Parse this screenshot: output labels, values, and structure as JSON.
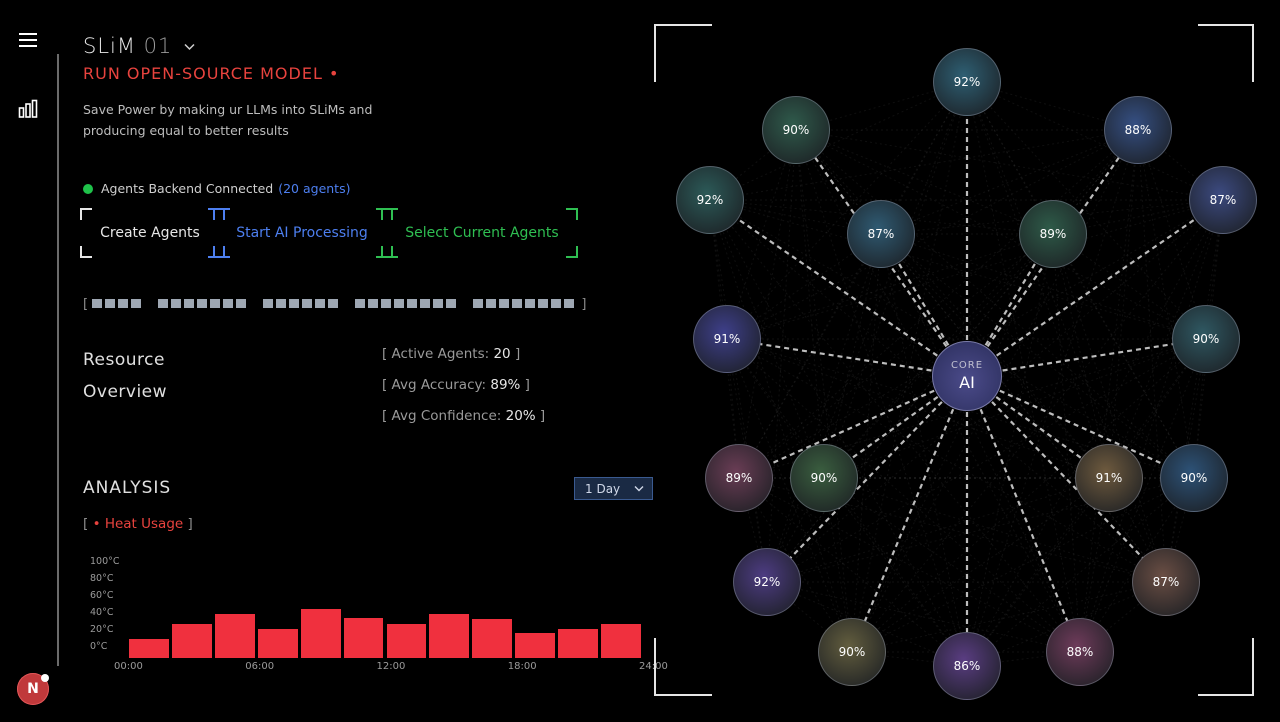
{
  "header": {
    "title": "SLiM",
    "version": "01",
    "subtitle": "RUN OPEN-SOURCE MODEL •",
    "description": "Save Power by making ur LLMs into SLiMs and producing equal to better results"
  },
  "status": {
    "text": "Agents Backend Connected",
    "count": "(20 agents)",
    "color": "#1fc24a"
  },
  "actions": {
    "create": "Create Agents",
    "start": "Start AI Processing",
    "select": "Select Current Agents"
  },
  "resource": {
    "title_line1": "Resource",
    "title_line2": "Overview",
    "active_label": "[ Active Agents:",
    "active_value": "20",
    "accuracy_label": "[ Avg Accuracy:",
    "accuracy_value": "89%",
    "confidence_label": "[ Avg Confidence:",
    "confidence_value": "20%",
    "close": "]"
  },
  "analysis": {
    "title": "ANALYSIS",
    "range": "1 Day",
    "metric_open": "[",
    "metric": "• Heat Usage",
    "metric_close": "]"
  },
  "chart_data": {
    "type": "bar",
    "title": "",
    "xlabel": "",
    "ylabel": "",
    "ylim": [
      0,
      100
    ],
    "yticks": [
      "100°C",
      "80°C",
      "60°C",
      "40°C",
      "20°C",
      "0°C"
    ],
    "xticks": [
      "00:00",
      "06:00",
      "12:00",
      "18:00",
      "24:00"
    ],
    "values": [
      22,
      40,
      52,
      34,
      58,
      47,
      40,
      52,
      46,
      29,
      34,
      40
    ],
    "color": "#f0303e"
  },
  "network": {
    "core_label": "CORE",
    "core_value": "AI",
    "nodes": [
      {
        "value": "92%",
        "color": "#2e5f73"
      },
      {
        "value": "90%",
        "color": "#2f5a4b"
      },
      {
        "value": "88%",
        "color": "#354f82"
      },
      {
        "value": "92%",
        "color": "#2c5a58"
      },
      {
        "value": "87%",
        "color": "#3c4a80"
      },
      {
        "value": "87%",
        "color": "#2f5a72"
      },
      {
        "value": "89%",
        "color": "#2e5a48"
      },
      {
        "value": "91%",
        "color": "#3e3f8a"
      },
      {
        "value": "90%",
        "color": "#2f5862"
      },
      {
        "value": "89%",
        "color": "#6a3d55"
      },
      {
        "value": "90%",
        "color": "#3a5e3f"
      },
      {
        "value": "91%",
        "color": "#6e5a3e"
      },
      {
        "value": "90%",
        "color": "#2d5277"
      },
      {
        "value": "92%",
        "color": "#4d3c82"
      },
      {
        "value": "87%",
        "color": "#6a4e44"
      },
      {
        "value": "90%",
        "color": "#625d3e"
      },
      {
        "value": "86%",
        "color": "#5a3d82"
      },
      {
        "value": "88%",
        "color": "#6e3b5a"
      }
    ]
  }
}
